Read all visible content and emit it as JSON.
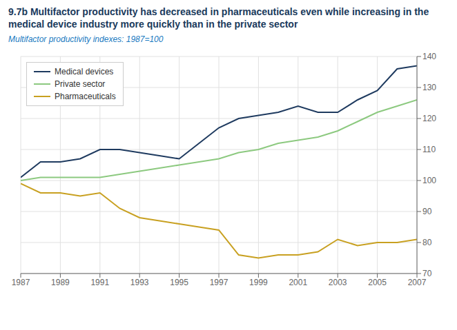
{
  "chart_data": {
    "type": "line",
    "title": "9.7b Multifactor productivity has decreased in pharmaceuticals even while increasing in the medical device industry more quickly than in the private sector",
    "subtitle": "Multifactor productivity indexes: 1987=100",
    "x": [
      1987,
      1988,
      1989,
      1990,
      1991,
      1992,
      1993,
      1994,
      1995,
      1996,
      1997,
      1998,
      1999,
      2000,
      2001,
      2002,
      2003,
      2004,
      2005,
      2006,
      2007
    ],
    "series": [
      {
        "name": "Medical devices",
        "color": "#1e3a5f",
        "values": [
          101,
          106,
          106,
          107,
          110,
          110,
          109,
          108,
          107,
          112,
          117,
          120,
          121,
          122,
          124,
          122,
          122,
          126,
          129,
          136,
          137
        ]
      },
      {
        "name": "Private sector",
        "color": "#8cc97f",
        "values": [
          100,
          101,
          101,
          101,
          101,
          102,
          103,
          104,
          105,
          106,
          107,
          109,
          110,
          112,
          113,
          114,
          116,
          119,
          122,
          124,
          126
        ]
      },
      {
        "name": "Pharmaceuticals",
        "color": "#c8a020",
        "values": [
          99,
          96,
          96,
          95,
          96,
          91,
          88,
          87,
          86,
          85,
          84,
          76,
          75,
          76,
          76,
          77,
          81,
          79,
          80,
          80,
          81
        ]
      }
    ],
    "xlim": [
      1987,
      2007
    ],
    "xticks": [
      1987,
      1989,
      1991,
      1993,
      1995,
      1997,
      1999,
      2001,
      2003,
      2005,
      2007
    ],
    "ylim": [
      70,
      140
    ],
    "yticks": [
      70,
      80,
      90,
      100,
      110,
      120,
      130,
      140
    ],
    "grid": true,
    "legend": "upper left"
  }
}
